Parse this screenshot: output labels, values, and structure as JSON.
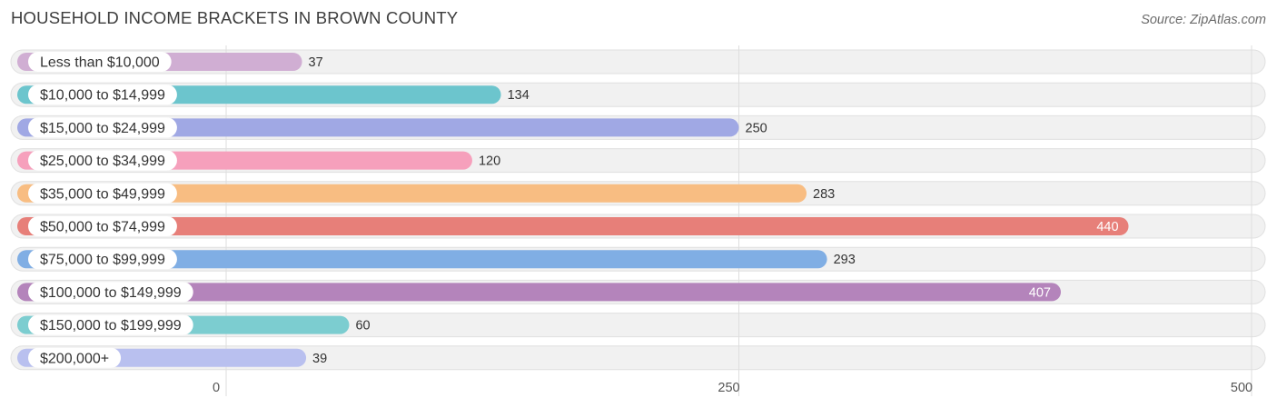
{
  "chart_data": {
    "type": "bar",
    "orientation": "horizontal",
    "title": "HOUSEHOLD INCOME BRACKETS IN BROWN COUNTY",
    "source": "Source: ZipAtlas.com",
    "categories": [
      "Less than $10,000",
      "$10,000 to $14,999",
      "$15,000 to $24,999",
      "$25,000 to $34,999",
      "$35,000 to $49,999",
      "$50,000 to $74,999",
      "$75,000 to $99,999",
      "$100,000 to $149,999",
      "$150,000 to $199,999",
      "$200,000+"
    ],
    "values": [
      37,
      134,
      250,
      120,
      283,
      440,
      293,
      407,
      60,
      39
    ],
    "colors": [
      "#d0aed3",
      "#6cc5cd",
      "#a0a8e4",
      "#f6a0bc",
      "#f8bd82",
      "#e77f79",
      "#80aee4",
      "#b484bb",
      "#7ccdd0",
      "#b9c0ef"
    ],
    "xlim": [
      0,
      500
    ],
    "xticks": [
      "0",
      "250",
      "500"
    ],
    "grid": true,
    "legend": "none"
  }
}
